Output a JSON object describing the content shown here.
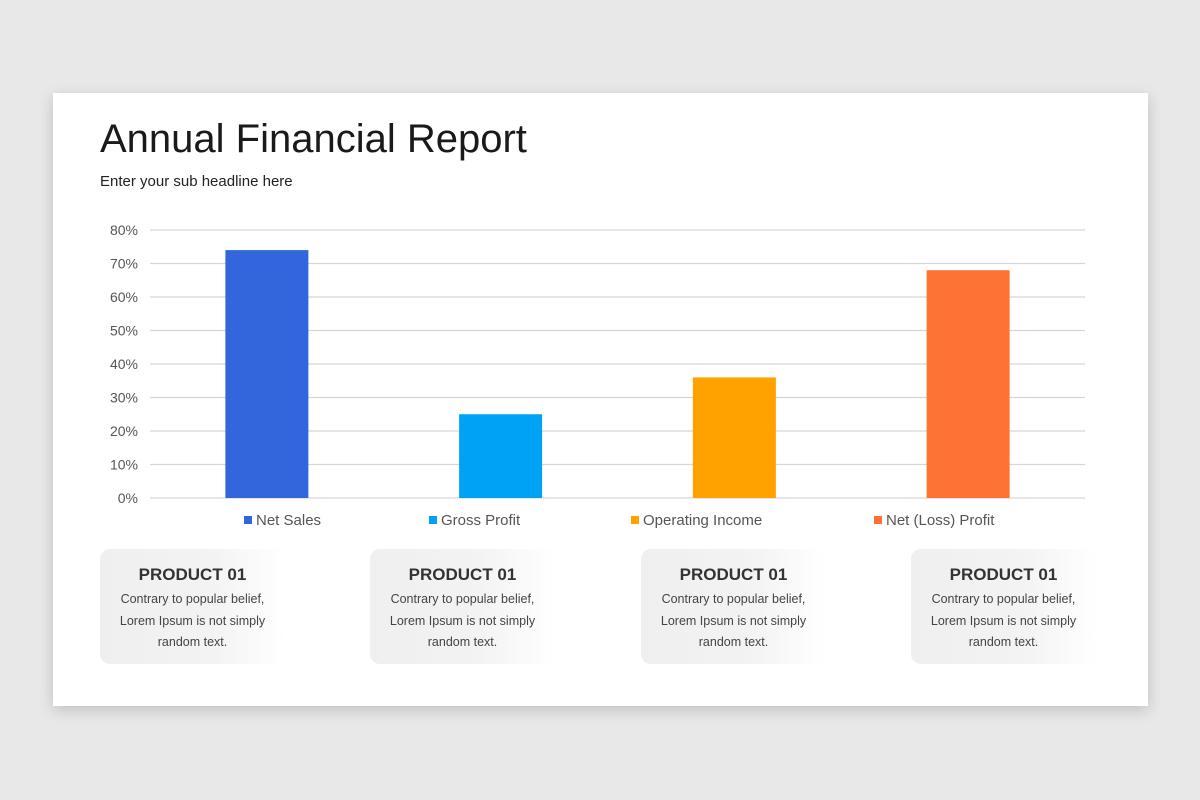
{
  "header": {
    "title": "Annual Financial Report",
    "subtitle": "Enter your sub headline here"
  },
  "chart_data": {
    "type": "bar",
    "categories": [
      "Net Sales",
      "Gross Profit",
      "Operating Income",
      "Net (Loss) Profit"
    ],
    "values": [
      74,
      25,
      36,
      68
    ],
    "colors": [
      "#3366dd",
      "#00a2f5",
      "#ffa200",
      "#ff7235"
    ],
    "yticks": [
      "0%",
      "10%",
      "20%",
      "30%",
      "40%",
      "50%",
      "60%",
      "70%",
      "80%"
    ],
    "ylim": [
      0,
      80
    ],
    "grid": true,
    "legend": "bottom"
  },
  "cards": [
    {
      "title": "PRODUCT 01",
      "text": "Contrary to popular belief, Lorem Ipsum is not simply random text."
    },
    {
      "title": "PRODUCT 01",
      "text": "Contrary to popular belief, Lorem Ipsum is not simply random text."
    },
    {
      "title": "PRODUCT 01",
      "text": "Contrary to popular belief, Lorem Ipsum is not simply random text."
    },
    {
      "title": "PRODUCT 01",
      "text": "Contrary to popular belief, Lorem Ipsum is not simply random text."
    }
  ]
}
